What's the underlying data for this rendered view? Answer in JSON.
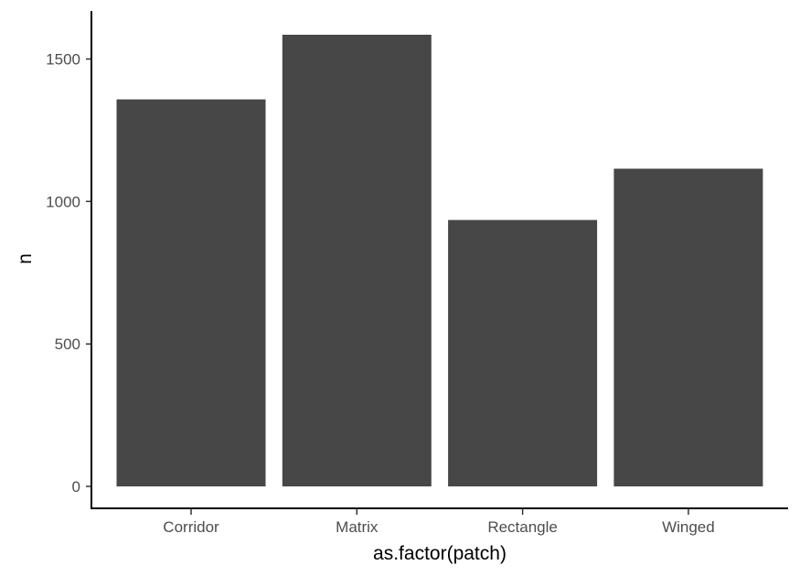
{
  "chart_data": {
    "type": "bar",
    "categories": [
      "Corridor",
      "Matrix",
      "Rectangle",
      "Winged"
    ],
    "values": [
      1358,
      1585,
      935,
      1115
    ],
    "title": "",
    "xlabel": "as.factor(patch)",
    "ylabel": "n",
    "ylim": [
      0,
      1585
    ],
    "yticks": [
      0,
      500,
      1000,
      1500
    ],
    "grid": false,
    "legend": "none",
    "bar_color": "#474747"
  }
}
